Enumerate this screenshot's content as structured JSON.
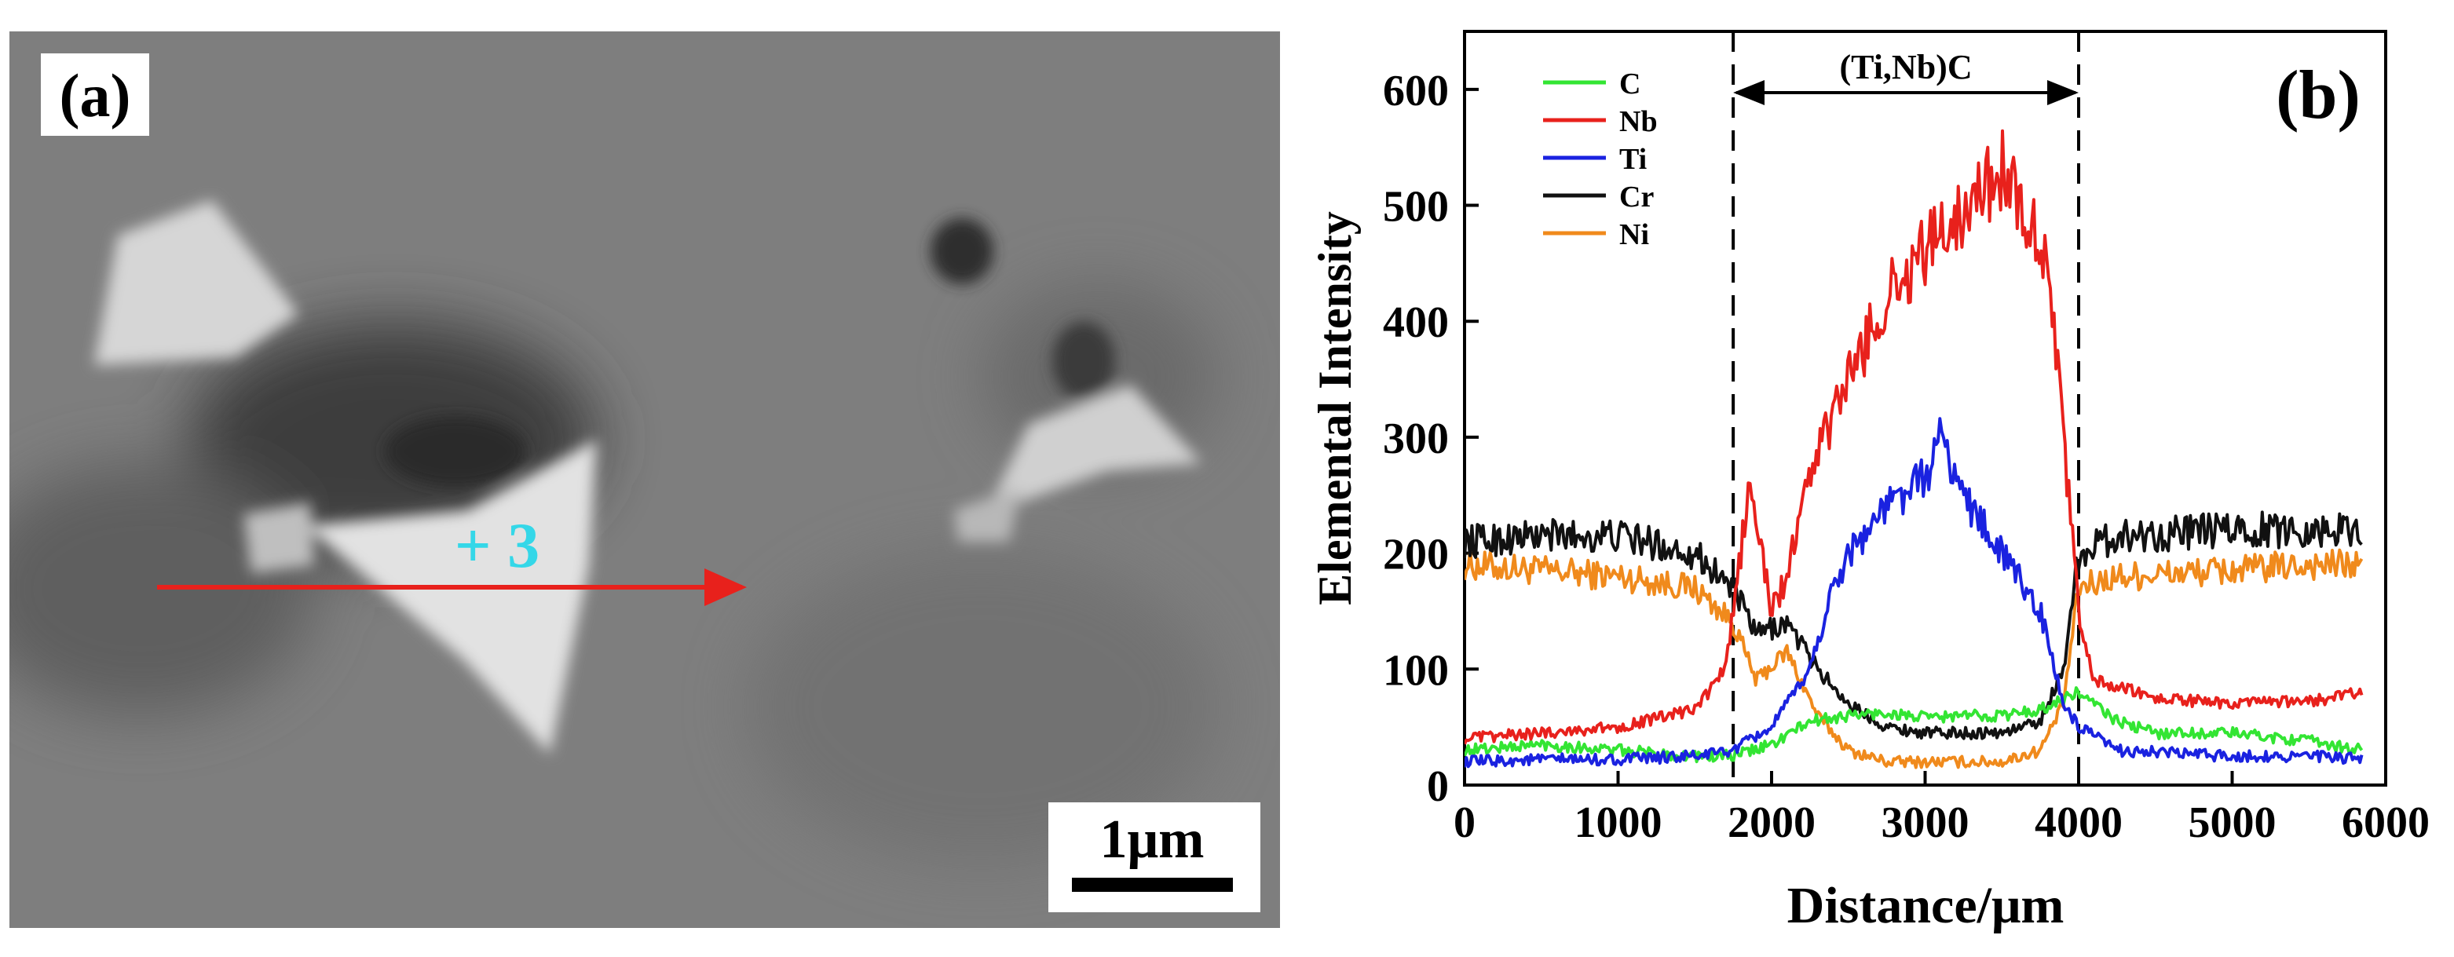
{
  "panel_a": {
    "label": "(a)",
    "point_label": "+ 3",
    "scale_bar_label": "1μm",
    "colors": {
      "line_scan": "#e8211c",
      "point_label": "#34d7e8",
      "scale_bar": "#000000"
    }
  },
  "panel_b": {
    "label": "(b)",
    "region_label": "(Ti,Nb)C",
    "region_bounds": [
      1750,
      4000
    ]
  },
  "chart_data": {
    "type": "line",
    "xlabel": "Distance/μm",
    "ylabel": "Elemental Intensity",
    "xlim": [
      0,
      6000
    ],
    "ylim": [
      0,
      650
    ],
    "xticks": [
      0,
      1000,
      2000,
      3000,
      4000,
      5000,
      6000
    ],
    "yticks": [
      0,
      100,
      200,
      300,
      400,
      500,
      600
    ],
    "grid": false,
    "legend_position": "top-left",
    "series": [
      {
        "name": "C",
        "color": "#33e533",
        "x": [
          0,
          500,
          1000,
          1500,
          1750,
          2000,
          2250,
          2500,
          2750,
          3000,
          3250,
          3500,
          3750,
          4000,
          4250,
          4500,
          5000,
          5500,
          5850
        ],
        "values": [
          30,
          35,
          30,
          25,
          25,
          35,
          55,
          60,
          62,
          58,
          60,
          60,
          65,
          80,
          55,
          45,
          45,
          38,
          30
        ]
      },
      {
        "name": "Nb",
        "color": "#e8211c",
        "x": [
          0,
          500,
          1000,
          1500,
          1700,
          1800,
          1850,
          1950,
          2000,
          2100,
          2250,
          2500,
          2750,
          3000,
          3250,
          3500,
          3650,
          3800,
          3900,
          4000,
          4100,
          4500,
          5000,
          5500,
          5850
        ],
        "values": [
          40,
          45,
          50,
          65,
          100,
          200,
          260,
          190,
          150,
          180,
          270,
          350,
          420,
          460,
          500,
          530,
          500,
          450,
          300,
          150,
          90,
          75,
          70,
          72,
          80
        ]
      },
      {
        "name": "Ti",
        "color": "#1a22e0",
        "x": [
          0,
          500,
          1000,
          1500,
          1750,
          2000,
          2250,
          2400,
          2500,
          2750,
          3000,
          3100,
          3250,
          3500,
          3750,
          3900,
          4000,
          4250,
          5000,
          5500,
          5850
        ],
        "values": [
          20,
          22,
          22,
          25,
          30,
          50,
          100,
          170,
          200,
          240,
          265,
          300,
          250,
          200,
          150,
          70,
          50,
          30,
          25,
          25,
          22
        ]
      },
      {
        "name": "Cr",
        "color": "#111111",
        "x": [
          0,
          500,
          1000,
          1500,
          1750,
          1900,
          2100,
          2300,
          2500,
          2750,
          3000,
          3500,
          3750,
          3900,
          4000,
          4250,
          5000,
          5500,
          5850
        ],
        "values": [
          210,
          215,
          215,
          200,
          170,
          130,
          140,
          100,
          70,
          50,
          45,
          45,
          55,
          100,
          200,
          215,
          220,
          220,
          220
        ]
      },
      {
        "name": "Ni",
        "color": "#f08a1c",
        "x": [
          0,
          500,
          1000,
          1500,
          1750,
          1900,
          2100,
          2300,
          2500,
          2750,
          3000,
          3500,
          3750,
          3900,
          4000,
          4250,
          5000,
          5500,
          5850
        ],
        "values": [
          190,
          185,
          180,
          170,
          140,
          90,
          115,
          60,
          30,
          20,
          20,
          20,
          30,
          70,
          170,
          180,
          185,
          190,
          190
        ]
      }
    ]
  }
}
